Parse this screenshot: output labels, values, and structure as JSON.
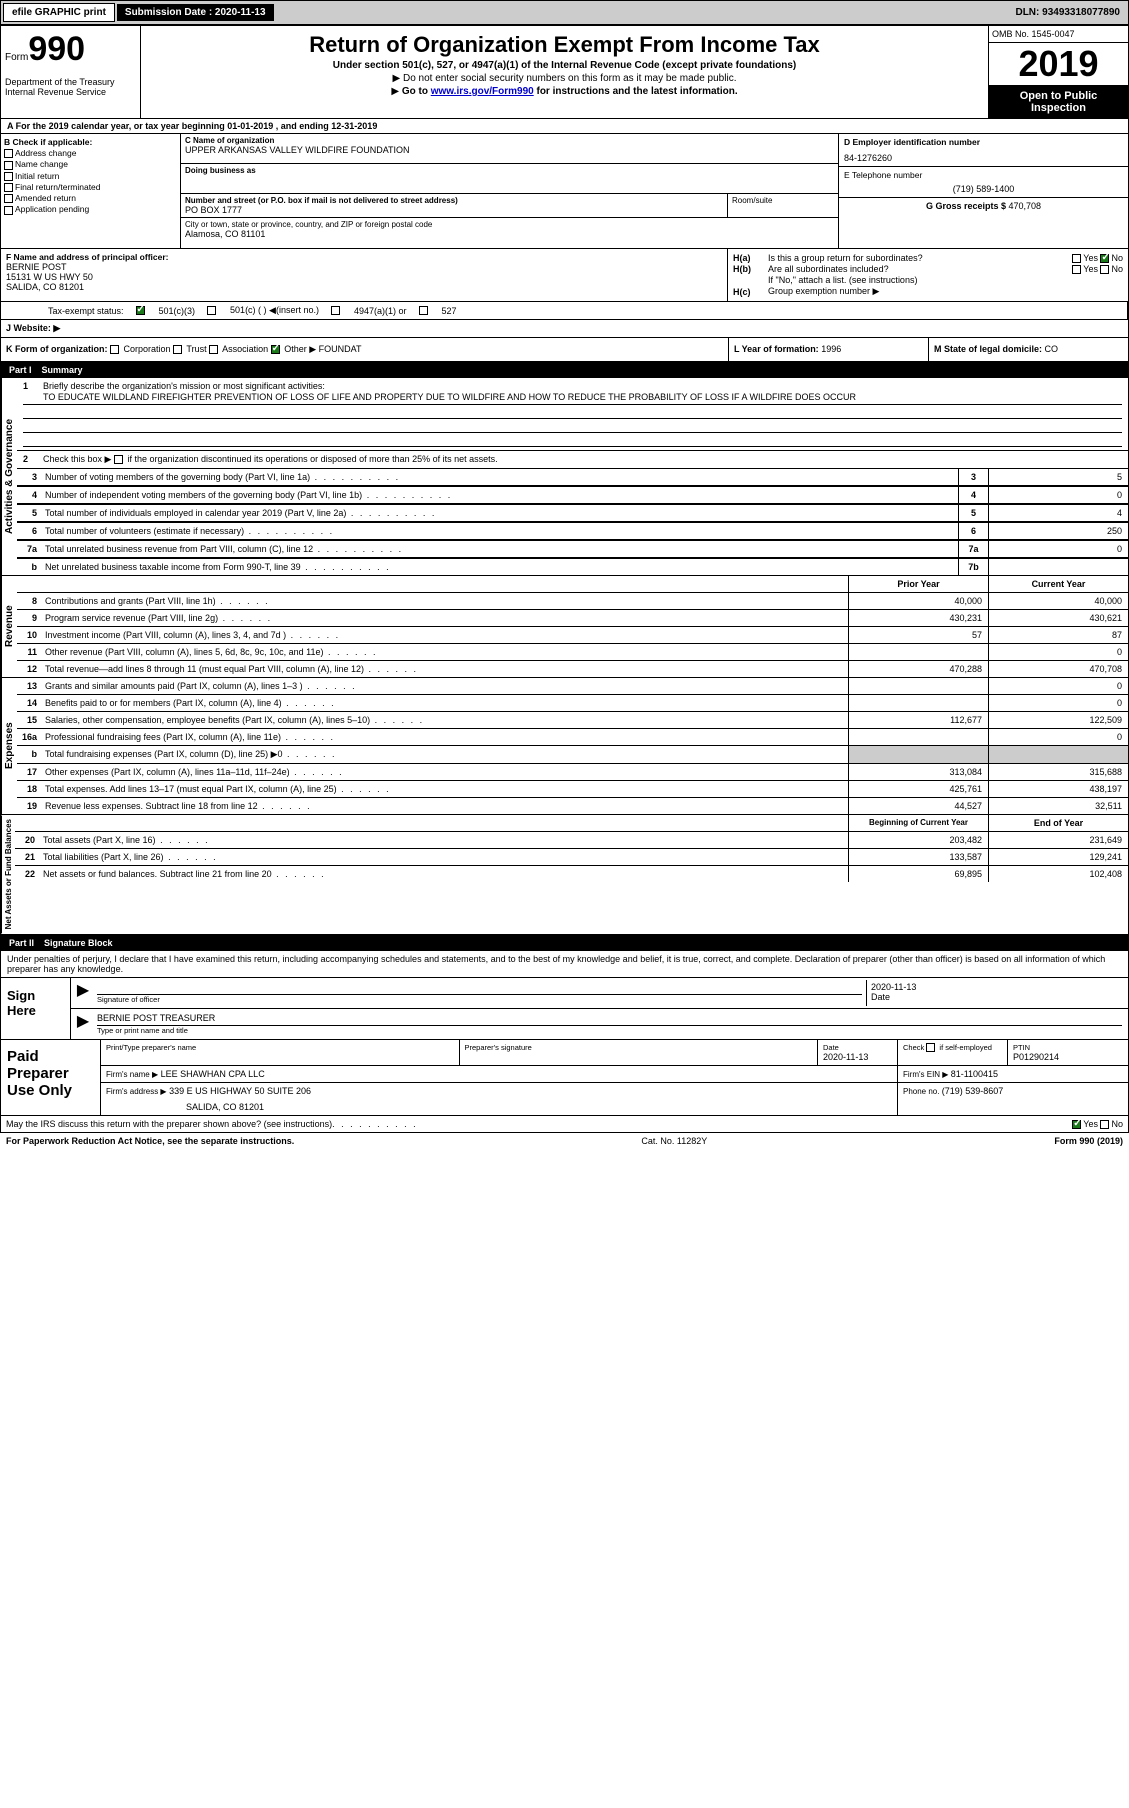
{
  "topbar": {
    "efile": "efile GRAPHIC print",
    "sub_label": "Submission Date : 2020-11-13",
    "dln": "DLN: 93493318077890"
  },
  "header": {
    "form": "Form",
    "formnum": "990",
    "dept": "Department of the Treasury\nInternal Revenue Service",
    "title": "Return of Organization Exempt From Income Tax",
    "sub1": "Under section 501(c), 527, or 4947(a)(1) of the Internal Revenue Code (except private foundations)",
    "sub2": "Do not enter social security numbers on this form as it may be made public.",
    "sub3_pre": "Go to ",
    "sub3_link": "www.irs.gov/Form990",
    "sub3_post": " for instructions and the latest information.",
    "omb": "OMB No. 1545-0047",
    "year": "2019",
    "open": "Open to Public Inspection"
  },
  "sectionA": "A For the 2019 calendar year, or tax year beginning 01-01-2019    , and ending 12-31-2019",
  "boxB": {
    "title": "B Check if applicable:",
    "items": [
      "Address change",
      "Name change",
      "Initial return",
      "Final return/terminated",
      "Amended return",
      "Application pending"
    ]
  },
  "boxC": {
    "label_name": "C Name of organization",
    "org": "UPPER ARKANSAS VALLEY WILDFIRE FOUNDATION",
    "dba_label": "Doing business as",
    "addr_label": "Number and street (or P.O. box if mail is not delivered to street address)",
    "room_label": "Room/suite",
    "addr": "PO BOX 1777",
    "city_label": "City or town, state or province, country, and ZIP or foreign postal code",
    "city": "Alamosa, CO  81101"
  },
  "boxD": {
    "ein_label": "D Employer identification number",
    "ein": "84-1276260",
    "tel_label": "E Telephone number",
    "tel": "(719) 589-1400",
    "gross_label": "G Gross receipts $ ",
    "gross": "470,708"
  },
  "boxF": {
    "label": "F  Name and address of principal officer:",
    "name": "BERNIE POST",
    "addr1": "15131 W US HWY 50",
    "addr2": "SALIDA, CO  81201"
  },
  "boxH": {
    "ha": "Is this a group return for subordinates?",
    "hb": "Are all subordinates included?",
    "hb2": "If \"No,\" attach a list. (see instructions)",
    "hc": "Group exemption number ▶"
  },
  "taxI": {
    "label": "Tax-exempt status:",
    "opts": [
      "501(c)(3)",
      "501(c) (  ) ◀(insert no.)",
      "4947(a)(1) or",
      "527"
    ]
  },
  "taxJ": {
    "label": "J   Website: ▶"
  },
  "boxK": {
    "label": "K Form of organization:",
    "opts": [
      "Corporation",
      "Trust",
      "Association",
      "Other ▶"
    ],
    "other": "FOUNDAT"
  },
  "boxL": {
    "label": "L Year of formation: ",
    "val": "1996"
  },
  "boxM": {
    "label": "M State of legal domicile: ",
    "val": "CO"
  },
  "part1": {
    "title": "Part I",
    "name": "Summary",
    "l1_label": "Briefly describe the organization's mission or most significant activities:",
    "l1_text": "TO EDUCATE WILDLAND FIREFIGHTER PREVENTION OF LOSS OF LIFE AND PROPERTY DUE TO WILDFIRE AND HOW TO REDUCE THE PROBABILITY OF LOSS IF A WILDFIRE DOES OCCUR",
    "l2": "Check this box ▶       if the organization discontinued its operations or disposed of more than 25% of its net assets.",
    "rows_ag": [
      {
        "n": "3",
        "t": "Number of voting members of the governing body (Part VI, line 1a)",
        "box": "3",
        "v": "5"
      },
      {
        "n": "4",
        "t": "Number of independent voting members of the governing body (Part VI, line 1b)",
        "box": "4",
        "v": "0"
      },
      {
        "n": "5",
        "t": "Total number of individuals employed in calendar year 2019 (Part V, line 2a)",
        "box": "5",
        "v": "4"
      },
      {
        "n": "6",
        "t": "Total number of volunteers (estimate if necessary)",
        "box": "6",
        "v": "250"
      },
      {
        "n": "7a",
        "t": "Total unrelated business revenue from Part VIII, column (C), line 12",
        "box": "7a",
        "v": "0"
      },
      {
        "n": "b",
        "t": "Net unrelated business taxable income from Form 990-T, line 39",
        "box": "7b",
        "v": ""
      }
    ],
    "col_prior": "Prior Year",
    "col_current": "Current Year",
    "rows_rev": [
      {
        "n": "8",
        "t": "Contributions and grants (Part VIII, line 1h)",
        "p": "40,000",
        "c": "40,000"
      },
      {
        "n": "9",
        "t": "Program service revenue (Part VIII, line 2g)",
        "p": "430,231",
        "c": "430,621"
      },
      {
        "n": "10",
        "t": "Investment income (Part VIII, column (A), lines 3, 4, and 7d )",
        "p": "57",
        "c": "87"
      },
      {
        "n": "11",
        "t": "Other revenue (Part VIII, column (A), lines 5, 6d, 8c, 9c, 10c, and 11e)",
        "p": "",
        "c": "0"
      },
      {
        "n": "12",
        "t": "Total revenue—add lines 8 through 11 (must equal Part VIII, column (A), line 12)",
        "p": "470,288",
        "c": "470,708"
      }
    ],
    "rows_exp": [
      {
        "n": "13",
        "t": "Grants and similar amounts paid (Part IX, column (A), lines 1–3 )",
        "p": "",
        "c": "0"
      },
      {
        "n": "14",
        "t": "Benefits paid to or for members (Part IX, column (A), line 4)",
        "p": "",
        "c": "0"
      },
      {
        "n": "15",
        "t": "Salaries, other compensation, employee benefits (Part IX, column (A), lines 5–10)",
        "p": "112,677",
        "c": "122,509"
      },
      {
        "n": "16a",
        "t": "Professional fundraising fees (Part IX, column (A), line 11e)",
        "p": "",
        "c": "0"
      },
      {
        "n": "b",
        "t": "Total fundraising expenses (Part IX, column (D), line 25) ▶0",
        "p": "grey",
        "c": "grey"
      },
      {
        "n": "17",
        "t": "Other expenses (Part IX, column (A), lines 11a–11d, 11f–24e)",
        "p": "313,084",
        "c": "315,688"
      },
      {
        "n": "18",
        "t": "Total expenses. Add lines 13–17 (must equal Part IX, column (A), line 25)",
        "p": "425,761",
        "c": "438,197"
      },
      {
        "n": "19",
        "t": "Revenue less expenses. Subtract line 18 from line 12",
        "p": "44,527",
        "c": "32,511"
      }
    ],
    "col_begin": "Beginning of Current Year",
    "col_end": "End of Year",
    "rows_net": [
      {
        "n": "20",
        "t": "Total assets (Part X, line 16)",
        "p": "203,482",
        "c": "231,649"
      },
      {
        "n": "21",
        "t": "Total liabilities (Part X, line 26)",
        "p": "133,587",
        "c": "129,241"
      },
      {
        "n": "22",
        "t": "Net assets or fund balances. Subtract line 21 from line 20",
        "p": "69,895",
        "c": "102,408"
      }
    ],
    "side_ag": "Activities & Governance",
    "side_rev": "Revenue",
    "side_exp": "Expenses",
    "side_net": "Net Assets or Fund Balances"
  },
  "part2": {
    "title": "Part II",
    "name": "Signature Block",
    "decl": "Under penalties of perjury, I declare that I have examined this return, including accompanying schedules and statements, and to the best of my knowledge and belief, it is true, correct, and complete. Declaration of preparer (other than officer) is based on all information of which preparer has any knowledge."
  },
  "sign": {
    "left": "Sign Here",
    "sig_label": "Signature of officer",
    "date_label": "Date",
    "date": "2020-11-13",
    "name": "BERNIE POST  TREASURER",
    "name_label": "Type or print name and title"
  },
  "prep": {
    "left": "Paid Preparer Use Only",
    "h1": "Print/Type preparer's name",
    "h2": "Preparer's signature",
    "h3": "Date",
    "date": "2020-11-13",
    "h4": "Check        if self-employed",
    "h5": "PTIN",
    "ptin": "P01290214",
    "firm_label": "Firm's name     ▶",
    "firm": "LEE SHAWHAN CPA LLC",
    "ein_label": "Firm's EIN ▶ ",
    "ein": "81-1100415",
    "addr_label": "Firm's address ▶",
    "addr1": "339 E US HIGHWAY 50 SUITE 206",
    "addr2": "SALIDA, CO  81201",
    "phone_label": "Phone no. ",
    "phone": "(719) 539-8607",
    "discuss": "May the IRS discuss this return with the preparer shown above? (see instructions)"
  },
  "footer": {
    "left": "For Paperwork Reduction Act Notice, see the separate instructions.",
    "mid": "Cat. No. 11282Y",
    "right": "Form 990 (2019)"
  }
}
